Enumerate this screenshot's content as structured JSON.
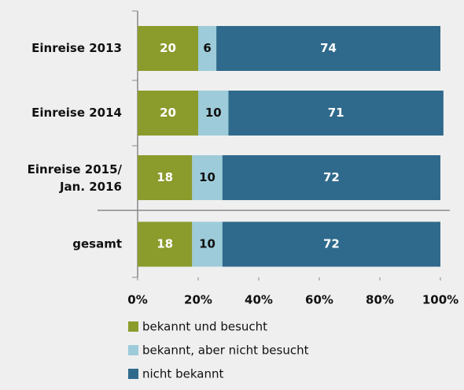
{
  "chart_data": {
    "type": "stacked-barh",
    "categories": [
      "Einreise 2013",
      "Einreise 2014",
      [
        "Einreise 2015/",
        "Jan. 2016"
      ],
      "gesamt"
    ],
    "series": [
      {
        "name": "bekannt und besucht",
        "color": "#8b9b2c",
        "label_color": "#ffffff",
        "values": [
          20,
          20,
          18,
          18
        ]
      },
      {
        "name": "bekannt, aber nicht besucht",
        "color": "#9dcbd9",
        "label_color": "#111111",
        "values": [
          6,
          10,
          10,
          10
        ]
      },
      {
        "name": "nicht bekannt",
        "color": "#2f6a8c",
        "label_color": "#ffffff",
        "values": [
          74,
          71,
          72,
          72
        ]
      }
    ],
    "xlim": [
      0,
      100
    ],
    "xticks": [
      {
        "value": 0,
        "label": "0%"
      },
      {
        "value": 20,
        "label": "20%"
      },
      {
        "value": 40,
        "label": "40%"
      },
      {
        "value": 60,
        "label": "60%"
      },
      {
        "value": 80,
        "label": "80%"
      },
      {
        "value": 100,
        "label": "100%"
      }
    ],
    "legend": "bottom"
  }
}
